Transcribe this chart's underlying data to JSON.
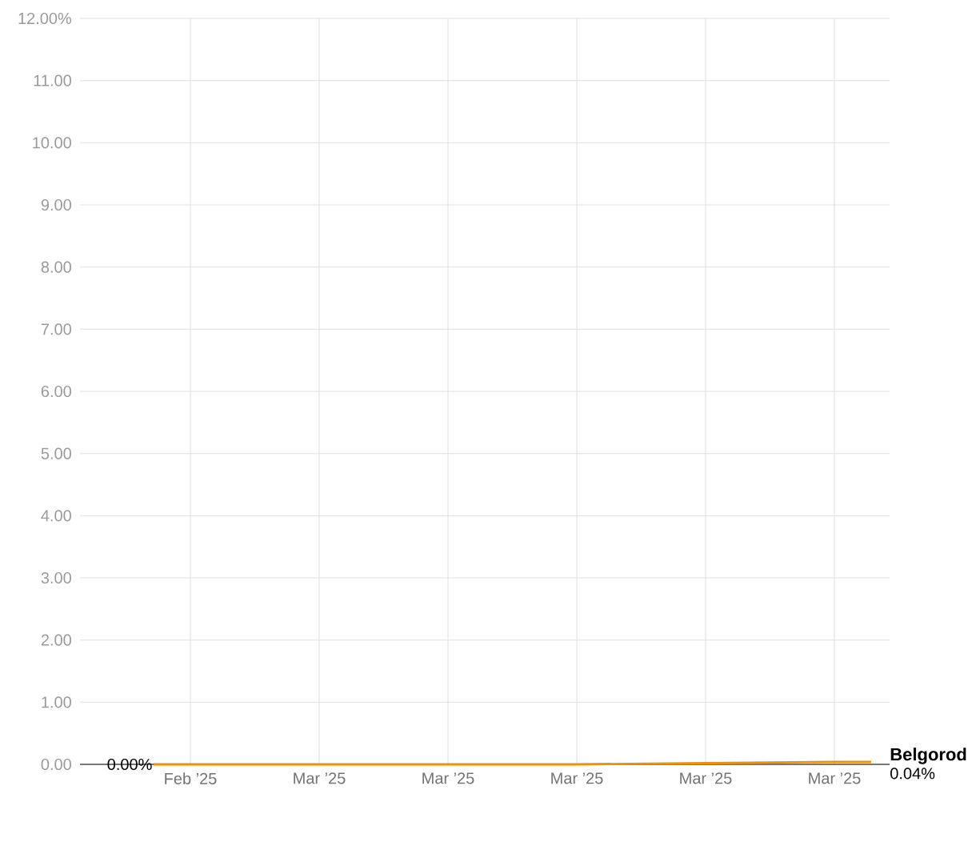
{
  "chart_data": {
    "type": "line",
    "x": [
      "2025-02-22",
      "2025-03-17",
      "2025-03-24",
      "2025-03-31",
      "2025-04-02"
    ],
    "series": [
      {
        "name": "Belgorod",
        "color": "#f29100",
        "values": [
          0,
          0,
          0.02,
          0.04,
          0.04
        ],
        "value_labels": [
          "0.00%",
          null,
          null,
          null,
          "0.04%"
        ]
      }
    ],
    "xlim": [
      "2025-02-18",
      "2025-04-03"
    ],
    "xticks": [
      {
        "value": "2025-02-24",
        "label": "Feb ’25"
      },
      {
        "value": "2025-03-03",
        "label": "Mar ’25"
      },
      {
        "value": "2025-03-10",
        "label": "Mar ’25"
      },
      {
        "value": "2025-03-17",
        "label": "Mar ’25"
      },
      {
        "value": "2025-03-24",
        "label": "Mar ’25"
      },
      {
        "value": "2025-03-31",
        "label": "Mar ’25"
      }
    ],
    "ylim": [
      0,
      12
    ],
    "yticks": [
      {
        "value": 0,
        "label": "0.00"
      },
      {
        "value": 1,
        "label": "1.00"
      },
      {
        "value": 2,
        "label": "2.00"
      },
      {
        "value": 3,
        "label": "3.00"
      },
      {
        "value": 4,
        "label": "4.00"
      },
      {
        "value": 5,
        "label": "5.00"
      },
      {
        "value": 6,
        "label": "6.00"
      },
      {
        "value": 7,
        "label": "7.00"
      },
      {
        "value": 8,
        "label": "8.00"
      },
      {
        "value": 9,
        "label": "9.00"
      },
      {
        "value": 10,
        "label": "10.00"
      },
      {
        "value": 11,
        "label": "11.00"
      },
      {
        "value": 12,
        "label": "12.00%"
      }
    ],
    "grid": true,
    "legend": false,
    "marker": "none",
    "line_style": "solid"
  }
}
